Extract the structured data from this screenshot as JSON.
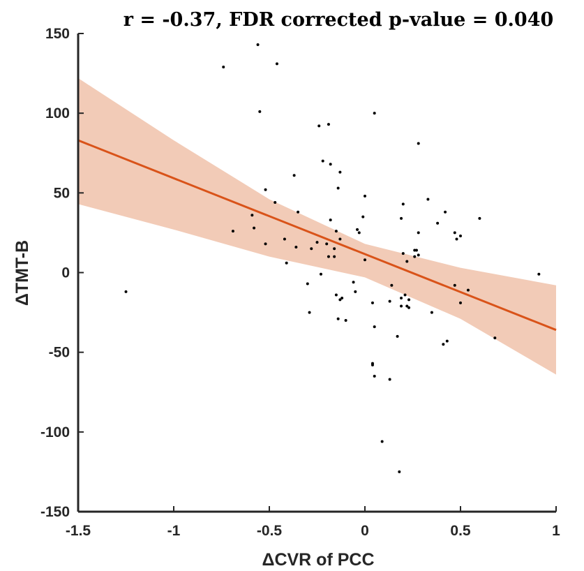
{
  "chart_data": {
    "type": "scatter",
    "title": "r = -0.37, FDR corrected p-value = 0.040",
    "xlabel": "ΔCVR of PCC",
    "ylabel": "ΔTMT-B",
    "xlim": [
      -1.5,
      1
    ],
    "ylim": [
      -150,
      150
    ],
    "xticks": [
      -1.5,
      -1,
      -0.5,
      0,
      0.5,
      1
    ],
    "xtick_labels": [
      "-1.5",
      "-1",
      "-0.5",
      "0",
      "0.5",
      "1"
    ],
    "yticks": [
      -150,
      -100,
      -50,
      0,
      50,
      100,
      150
    ],
    "ytick_labels": [
      "-150",
      "-100",
      "-50",
      "0",
      "50",
      "100",
      "150"
    ],
    "grid": false,
    "colors": {
      "fit_line": "#d95319",
      "ci_band": "#f2cbb7",
      "points": "#000000",
      "axis": "#262626"
    },
    "fit_line": {
      "x": [
        -1.5,
        1
      ],
      "y": [
        83,
        -36
      ]
    },
    "confidence_band": {
      "x": [
        -1.5,
        -1.0,
        -0.5,
        0.0,
        0.5,
        1.0
      ],
      "upper": [
        122,
        83,
        46,
        18,
        3,
        -8
      ],
      "lower": [
        43,
        27,
        10,
        -3,
        -29,
        -64
      ]
    },
    "points": {
      "x": [
        -0.56,
        -0.74,
        -0.46,
        -0.55,
        -0.24,
        -0.19,
        -0.22,
        -0.18,
        -0.13,
        -0.37,
        -0.14,
        -0.52,
        -0.47,
        -0.35,
        -0.59,
        -0.58,
        -0.69,
        -0.42,
        -0.52,
        -0.36,
        -0.41,
        -0.28,
        -0.25,
        -0.2,
        -0.16,
        -0.13,
        -0.16,
        -0.15,
        -0.19,
        -0.18,
        -0.12,
        -0.23,
        -0.3,
        -0.29,
        -0.15,
        -0.13,
        -0.1,
        -0.06,
        -0.05,
        -0.14,
        -0.03,
        -0.04,
        -0.01,
        0.0,
        0.05,
        0.0,
        0.04,
        0.05,
        0.04,
        0.04,
        0.05,
        0.09,
        0.18,
        0.13,
        0.28,
        0.2,
        0.19,
        0.33,
        0.42,
        0.6,
        0.38,
        0.28,
        0.47,
        0.48,
        0.5,
        0.2,
        0.26,
        0.27,
        0.28,
        0.26,
        0.22,
        0.14,
        0.13,
        0.21,
        0.19,
        0.23,
        0.19,
        0.22,
        0.17,
        0.23,
        0.41,
        0.43,
        0.35,
        0.47,
        0.5,
        0.54,
        0.68,
        0.91,
        -1.25
      ],
      "y": [
        143,
        129,
        131,
        101,
        92,
        93,
        70,
        68,
        63,
        61,
        53,
        52,
        44,
        38,
        36,
        28,
        26,
        21,
        18,
        16,
        6,
        15,
        19,
        18,
        10,
        21,
        15,
        26,
        10,
        33,
        -16,
        -1,
        -7,
        -25,
        -14,
        -17,
        -30,
        -6,
        -12,
        -29,
        25,
        27,
        35,
        48,
        100,
        8,
        -19,
        -34,
        -57,
        -58,
        -65,
        -106,
        -125,
        -67,
        81,
        43,
        34,
        46,
        38,
        34,
        31,
        25,
        25,
        21,
        23,
        12,
        10,
        14,
        11,
        14,
        7,
        -8,
        -18,
        -14,
        -16,
        -17,
        -21,
        -21,
        -40,
        -22,
        -45,
        -43,
        -25,
        -8,
        -19,
        -11,
        -41,
        -1,
        -12
      ]
    }
  }
}
